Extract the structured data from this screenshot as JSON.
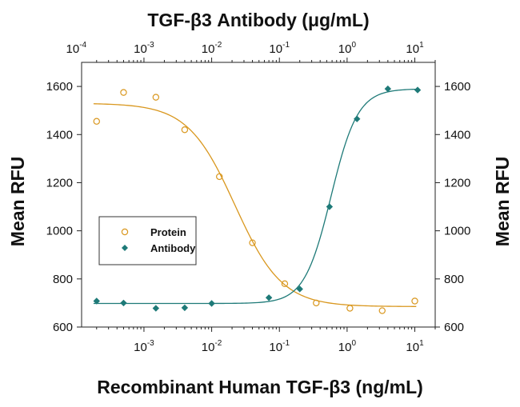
{
  "chart_data": {
    "type": "scatter",
    "title": "",
    "top_axis_title": "TGF-β3 Antibody (μg/mL)",
    "xlabel": "Recombinant Human TGF-β3 (ng/mL)",
    "ylabel_left": "Mean RFU",
    "ylabel_right": "Mean RFU",
    "x_scale": "log",
    "xlim": [
      0.00012,
      20
    ],
    "ylim": [
      600,
      1700
    ],
    "y_ticks": [
      600,
      800,
      1000,
      1200,
      1400,
      1600
    ],
    "bottom_x_tick_labels": [
      {
        "value": 0.001,
        "base": "10",
        "exp": "-3"
      },
      {
        "value": 0.01,
        "base": "10",
        "exp": "-2"
      },
      {
        "value": 0.1,
        "base": "10",
        "exp": "-1"
      },
      {
        "value": 1,
        "base": "10",
        "exp": "0"
      },
      {
        "value": 10,
        "base": "10",
        "exp": "1"
      }
    ],
    "top_x_tick_labels": [
      {
        "value": 0.0001,
        "base": "10",
        "exp": "-4"
      },
      {
        "value": 0.001,
        "base": "10",
        "exp": "-3"
      },
      {
        "value": 0.01,
        "base": "10",
        "exp": "-2"
      },
      {
        "value": 0.1,
        "base": "10",
        "exp": "-1"
      },
      {
        "value": 1,
        "base": "10",
        "exp": "0"
      },
      {
        "value": 10,
        "base": "10",
        "exp": "1"
      }
    ],
    "legend_position": "left",
    "series": [
      {
        "name": "Protein",
        "marker": "open-circle",
        "color": "#D9971E",
        "x": [
          0.0002,
          0.0005,
          0.0015,
          0.004,
          0.013,
          0.04,
          0.12,
          0.35,
          1.1,
          3.3,
          10
        ],
        "y": [
          1455,
          1575,
          1555,
          1420,
          1225,
          950,
          780,
          700,
          678,
          668,
          708
        ],
        "fit": {
          "top": 1530,
          "bottom": 685,
          "ec50": 0.022,
          "hill": 1.25
        }
      },
      {
        "name": "Antibody",
        "marker": "filled-diamond",
        "color": "#1E7A78",
        "x": [
          0.0002,
          0.0005,
          0.0015,
          0.004,
          0.01,
          0.07,
          0.2,
          0.55,
          1.4,
          4,
          11
        ],
        "y": [
          708,
          700,
          678,
          680,
          698,
          722,
          758,
          1100,
          1465,
          1590,
          1585
        ],
        "fit": {
          "top": 1590,
          "bottom": 698,
          "ec50": 0.58,
          "hill": 2.2
        }
      }
    ]
  }
}
